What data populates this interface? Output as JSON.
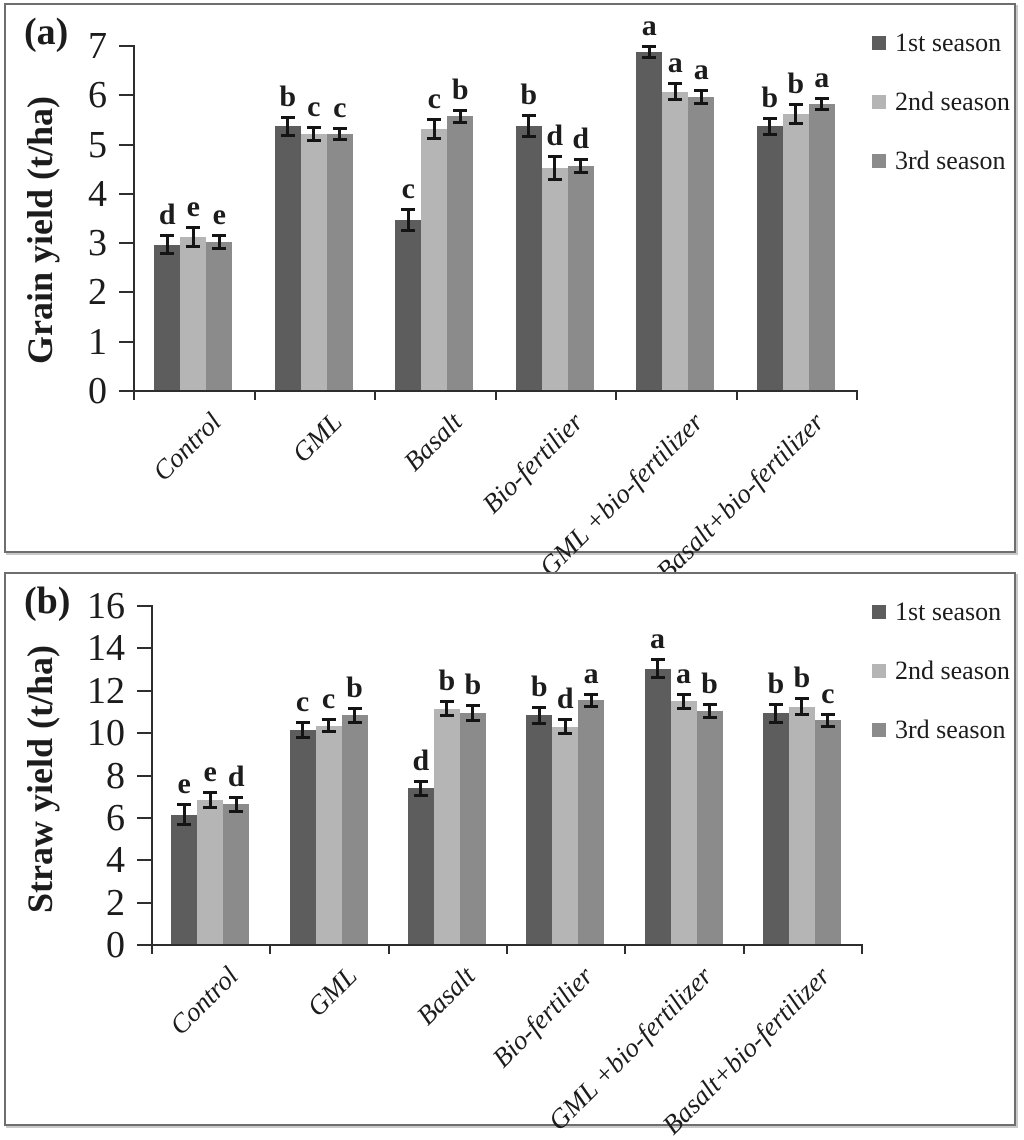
{
  "chart_data": [
    {
      "type": "bar",
      "panel_label": "(a)",
      "ylabel": "Grain yield (t/ha)",
      "ylim": [
        0,
        7
      ],
      "ytick_step": 1,
      "grid": false,
      "legend_position": "top-right",
      "categories": [
        "Control",
        "GML",
        "Basalt",
        "Bio-fertilier",
        "GML +bio-fertilizer",
        "Basalt+bio-fertilizer"
      ],
      "series": [
        {
          "name": "1st season",
          "color": "#5d5d5d",
          "values": [
            2.95,
            5.35,
            3.45,
            5.35,
            6.85,
            5.35
          ],
          "errors": [
            0.17,
            0.17,
            0.2,
            0.2,
            0.1,
            0.15
          ],
          "letters": [
            "d",
            "b",
            "c",
            "b",
            "a",
            "b"
          ]
        },
        {
          "name": "2nd season",
          "color": "#b5b5b5",
          "values": [
            3.1,
            5.2,
            5.3,
            4.5,
            6.05,
            5.6
          ],
          "errors": [
            0.18,
            0.12,
            0.18,
            0.22,
            0.15,
            0.18
          ],
          "letters": [
            "e",
            "c",
            "c",
            "d",
            "a",
            "b"
          ]
        },
        {
          "name": "3rd season",
          "color": "#8b8b8b",
          "values": [
            3.0,
            5.2,
            5.55,
            4.55,
            5.95,
            5.8
          ],
          "errors": [
            0.12,
            0.1,
            0.12,
            0.12,
            0.12,
            0.1
          ],
          "letters": [
            "e",
            "c",
            "b",
            "d",
            "a",
            "a"
          ]
        }
      ]
    },
    {
      "type": "bar",
      "panel_label": "(b)",
      "ylabel": "Straw yield (t/ha)",
      "ylim": [
        0,
        16
      ],
      "ytick_step": 2,
      "grid": false,
      "legend_position": "top-right",
      "categories": [
        "Control",
        "GML",
        "Basalt",
        "Bio-fertilier",
        "GML +bio-fertilizer",
        "Basalt+bio-fertilizer"
      ],
      "series": [
        {
          "name": "1st season",
          "color": "#5d5d5d",
          "values": [
            6.1,
            10.1,
            7.35,
            10.8,
            13.0,
            10.9
          ],
          "errors": [
            0.45,
            0.35,
            0.3,
            0.35,
            0.4,
            0.4
          ],
          "letters": [
            "e",
            "c",
            "d",
            "b",
            "a",
            "b"
          ]
        },
        {
          "name": "2nd season",
          "color": "#b5b5b5",
          "values": [
            6.8,
            10.3,
            11.1,
            10.25,
            11.45,
            11.2
          ],
          "errors": [
            0.35,
            0.25,
            0.3,
            0.3,
            0.3,
            0.35
          ],
          "letters": [
            "e",
            "c",
            "b",
            "d",
            "a",
            "b"
          ]
        },
        {
          "name": "3rd season",
          "color": "#8b8b8b",
          "values": [
            6.6,
            10.8,
            10.9,
            11.5,
            11.0,
            10.55
          ],
          "errors": [
            0.3,
            0.3,
            0.35,
            0.25,
            0.3,
            0.25
          ],
          "letters": [
            "d",
            "b",
            "b",
            "a",
            "b",
            "c"
          ]
        }
      ]
    }
  ]
}
